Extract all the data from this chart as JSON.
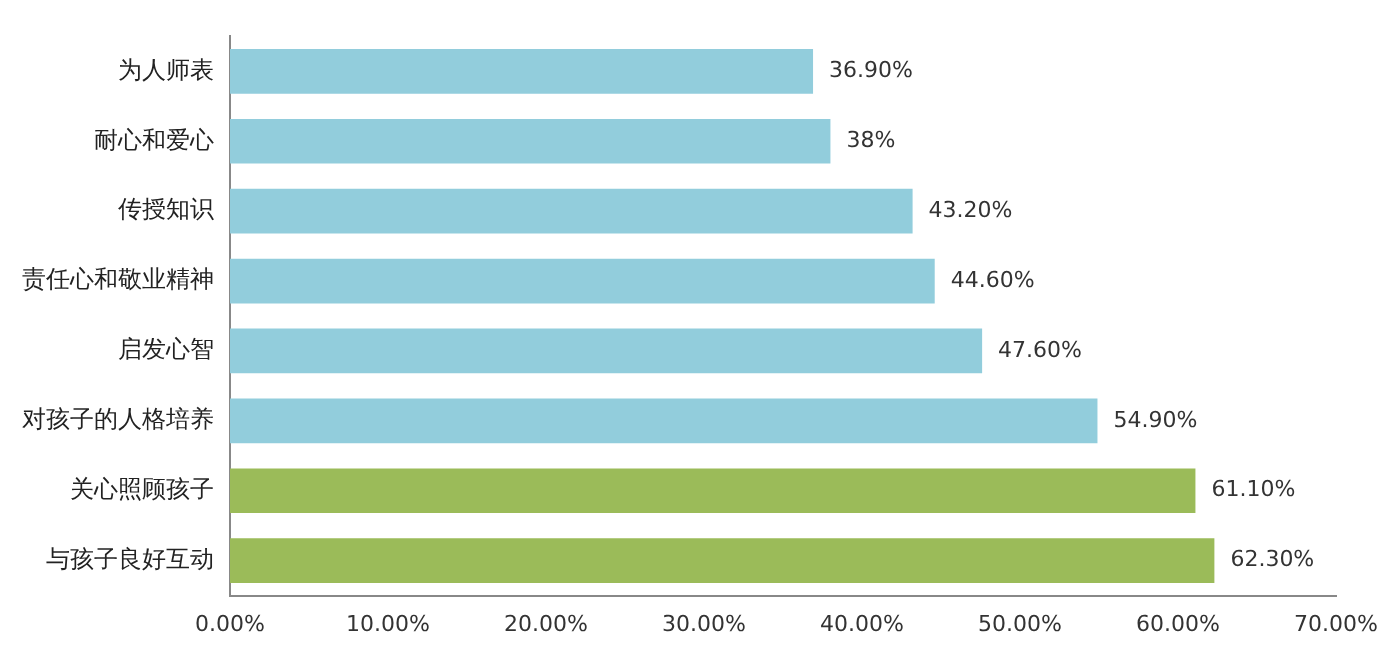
{
  "chart_data": {
    "type": "bar",
    "orientation": "horizontal",
    "categories": [
      "为人师表",
      "耐心和爱心",
      "传授知识",
      "责任心和敬业精神",
      "启发心智",
      "对孩子的人格培养",
      "关心照顾孩子",
      "与孩子良好互动"
    ],
    "values": [
      36.9,
      38,
      43.2,
      44.6,
      47.6,
      54.9,
      61.1,
      62.3
    ],
    "value_labels": [
      "36.90%",
      "38%",
      "43.20%",
      "44.60%",
      "47.60%",
      "54.90%",
      "61.10%",
      "62.30%"
    ],
    "colors": [
      "#92cddc",
      "#92cddc",
      "#92cddc",
      "#92cddc",
      "#92cddc",
      "#92cddc",
      "#9bbb59",
      "#9bbb59"
    ],
    "xlim": [
      0,
      70
    ],
    "xticks": [
      {
        "value": 0,
        "label": "0.00%"
      },
      {
        "value": 10,
        "label": "10.00%"
      },
      {
        "value": 20,
        "label": "20.00%"
      },
      {
        "value": 30,
        "label": "30.00%"
      },
      {
        "value": 40,
        "label": "40.00%"
      },
      {
        "value": 50,
        "label": "50.00%"
      },
      {
        "value": 60,
        "label": "60.00%"
      },
      {
        "value": 70,
        "label": "70.00%"
      }
    ],
    "grid": false,
    "legend": false
  }
}
